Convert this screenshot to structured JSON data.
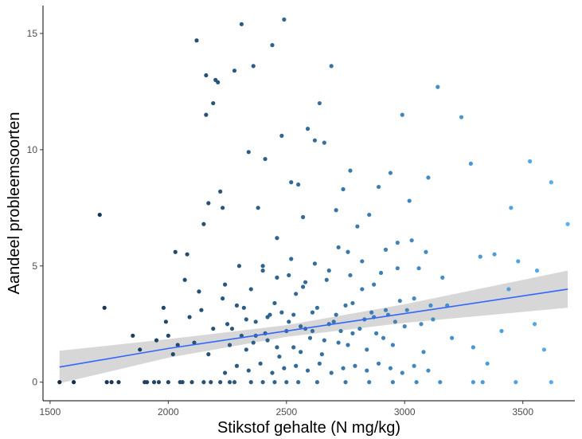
{
  "chart_data": {
    "type": "scatter",
    "title": "",
    "xlabel": "Stikstof gehalte (N mg/kg)",
    "ylabel": "Aandeel probleemsoorten",
    "xlim": [
      1470,
      3720
    ],
    "ylim": [
      -0.8,
      16.2
    ],
    "x_ticks": [
      1500,
      2000,
      2500,
      3000,
      3500
    ],
    "y_ticks": [
      0,
      5,
      10,
      15
    ],
    "grid": false,
    "legend": "none",
    "color_scale": [
      "#132b43",
      "#56b1f7"
    ],
    "trend_color": "#3366ff",
    "band_color": "#bdbdbd",
    "trend": {
      "x": [
        1540,
        2000,
        2500,
        3000,
        3690
      ],
      "y": [
        0.65,
        1.45,
        2.2,
        2.95,
        4.0
      ],
      "lower": [
        -0.05,
        1.05,
        1.95,
        2.55,
        3.2
      ],
      "upper": [
        1.35,
        1.85,
        2.45,
        3.35,
        4.8
      ]
    },
    "points": [
      [
        1540,
        0
      ],
      [
        1600,
        0
      ],
      [
        1710,
        7.2
      ],
      [
        1730,
        3.2
      ],
      [
        1740,
        0
      ],
      [
        1760,
        0
      ],
      [
        1790,
        0
      ],
      [
        1850,
        2.0
      ],
      [
        1880,
        1.4
      ],
      [
        1910,
        0
      ],
      [
        1940,
        0
      ],
      [
        1950,
        1.8
      ],
      [
        1960,
        0
      ],
      [
        1980,
        3.2
      ],
      [
        1990,
        2.6
      ],
      [
        2000,
        2.0
      ],
      [
        2000,
        0
      ],
      [
        2020,
        1.2
      ],
      [
        2030,
        5.6
      ],
      [
        2040,
        1.6
      ],
      [
        2060,
        0
      ],
      [
        2070,
        4.4
      ],
      [
        2080,
        5.5
      ],
      [
        2090,
        2.8
      ],
      [
        2100,
        0
      ],
      [
        2110,
        1.7
      ],
      [
        2120,
        14.7
      ],
      [
        2130,
        3.9
      ],
      [
        2150,
        6.8
      ],
      [
        2160,
        11.5
      ],
      [
        2160,
        13.2
      ],
      [
        2170,
        7.7
      ],
      [
        2180,
        0
      ],
      [
        2190,
        12.0
      ],
      [
        2200,
        13.0
      ],
      [
        2210,
        12.9
      ],
      [
        2220,
        8.2
      ],
      [
        2230,
        7.5
      ],
      [
        2240,
        4.2
      ],
      [
        2250,
        2.5
      ],
      [
        2260,
        0
      ],
      [
        2270,
        2.3
      ],
      [
        2280,
        13.4
      ],
      [
        2300,
        5.0
      ],
      [
        2310,
        15.4
      ],
      [
        2320,
        3.2
      ],
      [
        2330,
        1.4
      ],
      [
        2340,
        9.9
      ],
      [
        2350,
        4.0
      ],
      [
        2360,
        13.6
      ],
      [
        2370,
        2.0
      ],
      [
        2380,
        7.5
      ],
      [
        2400,
        4.8
      ],
      [
        2400,
        0
      ],
      [
        2410,
        9.6
      ],
      [
        2420,
        1.8
      ],
      [
        2430,
        2.9
      ],
      [
        2440,
        14.5
      ],
      [
        2450,
        3.4
      ],
      [
        2460,
        6.2
      ],
      [
        2470,
        1.1
      ],
      [
        2480,
        10.6
      ],
      [
        2490,
        15.6
      ],
      [
        2500,
        2.2
      ],
      [
        2510,
        4.6
      ],
      [
        2520,
        8.6
      ],
      [
        2530,
        1.5
      ],
      [
        2540,
        3.8
      ],
      [
        2550,
        8.5
      ],
      [
        2560,
        2.4
      ],
      [
        2570,
        7.1
      ],
      [
        2580,
        4.3
      ],
      [
        2590,
        10.9
      ],
      [
        2600,
        1.9
      ],
      [
        2610,
        3.0
      ],
      [
        2620,
        10.4
      ],
      [
        2630,
        0
      ],
      [
        2640,
        12.0
      ],
      [
        2650,
        1.2
      ],
      [
        2660,
        10.3
      ],
      [
        2680,
        4.8
      ],
      [
        2690,
        13.6
      ],
      [
        2700,
        2.6
      ],
      [
        2710,
        7.4
      ],
      [
        2720,
        1.7
      ],
      [
        2740,
        8.3
      ],
      [
        2750,
        3.3
      ],
      [
        2760,
        5.6
      ],
      [
        2770,
        9.1
      ],
      [
        2780,
        2.1
      ],
      [
        2800,
        6.7
      ],
      [
        2820,
        4.0
      ],
      [
        2840,
        1.4
      ],
      [
        2850,
        7.2
      ],
      [
        2870,
        2.8
      ],
      [
        2890,
        8.4
      ],
      [
        2900,
        4.7
      ],
      [
        2920,
        3.1
      ],
      [
        2940,
        9.0
      ],
      [
        2950,
        1.6
      ],
      [
        2970,
        6.0
      ],
      [
        2990,
        11.5
      ],
      [
        3000,
        2.4
      ],
      [
        3020,
        7.8
      ],
      [
        3040,
        3.6
      ],
      [
        3060,
        4.9
      ],
      [
        3080,
        1.3
      ],
      [
        3100,
        8.8
      ],
      [
        3120,
        2.7
      ],
      [
        3140,
        12.7
      ],
      [
        3160,
        4.5
      ],
      [
        3180,
        3.3
      ],
      [
        3200,
        1.9
      ],
      [
        3240,
        11.4
      ],
      [
        3280,
        9.4
      ],
      [
        3290,
        1.5
      ],
      [
        3320,
        5.4
      ],
      [
        3350,
        0.8
      ],
      [
        3380,
        5.5
      ],
      [
        3410,
        2.2
      ],
      [
        3440,
        4.0
      ],
      [
        3450,
        7.5
      ],
      [
        3480,
        5.2
      ],
      [
        3530,
        9.5
      ],
      [
        3550,
        2.5
      ],
      [
        3560,
        4.8
      ],
      [
        3590,
        1.4
      ],
      [
        3620,
        8.6
      ],
      [
        3690,
        6.8
      ],
      [
        3620,
        0
      ],
      [
        3470,
        0
      ],
      [
        3330,
        0
      ],
      [
        3290,
        0
      ],
      [
        3150,
        0
      ],
      [
        3050,
        0
      ],
      [
        2950,
        0
      ],
      [
        2850,
        0
      ],
      [
        2750,
        0
      ],
      [
        2550,
        0
      ],
      [
        2500,
        0
      ],
      [
        2450,
        0
      ],
      [
        2350,
        0
      ],
      [
        2280,
        0
      ],
      [
        2220,
        0
      ],
      [
        2150,
        0
      ],
      [
        2050,
        0
      ],
      [
        1900,
        0
      ],
      [
        2370,
        2.6
      ],
      [
        2420,
        2.8
      ],
      [
        2480,
        3.0
      ],
      [
        2530,
        2.9
      ],
      [
        2580,
        2.3
      ],
      [
        2630,
        3.2
      ],
      [
        2680,
        2.5
      ],
      [
        2730,
        2.2
      ],
      [
        2780,
        3.4
      ],
      [
        2830,
        2.7
      ],
      [
        2880,
        2.1
      ],
      [
        2930,
        2.9
      ],
      [
        2980,
        3.5
      ],
      [
        2330,
        2.7
      ],
      [
        2290,
        3.3
      ],
      [
        2260,
        1.6
      ],
      [
        2230,
        3.6
      ],
      [
        2190,
        2.3
      ],
      [
        2170,
        1.2
      ],
      [
        2140,
        3.1
      ],
      [
        2310,
        2.0
      ],
      [
        2360,
        1.7
      ],
      [
        2410,
        2.1
      ],
      [
        2460,
        1.5
      ],
      [
        2510,
        2.6
      ],
      [
        2560,
        1.3
      ],
      [
        2610,
        2.2
      ],
      [
        2660,
        1.8
      ],
      [
        2710,
        2.9
      ],
      [
        2760,
        1.6
      ],
      [
        2810,
        2.3
      ],
      [
        2860,
        3.0
      ],
      [
        2910,
        1.9
      ],
      [
        2960,
        2.6
      ],
      [
        3010,
        3.1
      ],
      [
        3070,
        2.5
      ],
      [
        3110,
        3.3
      ],
      [
        2400,
        5.0
      ],
      [
        2460,
        4.5
      ],
      [
        2520,
        5.3
      ],
      [
        2570,
        4.1
      ],
      [
        2620,
        5.1
      ],
      [
        2670,
        4.4
      ],
      [
        2720,
        5.8
      ],
      [
        2770,
        4.6
      ],
      [
        2820,
        5.2
      ],
      [
        2870,
        4.2
      ],
      [
        2920,
        5.7
      ],
      [
        2970,
        4.9
      ],
      [
        3030,
        6.1
      ],
      [
        3090,
        5.6
      ],
      [
        2240,
        0.4
      ],
      [
        2290,
        0.7
      ],
      [
        2340,
        0.5
      ],
      [
        2390,
        0.8
      ],
      [
        2440,
        0.4
      ],
      [
        2490,
        0.6
      ],
      [
        2540,
        0.7
      ],
      [
        2590,
        0.5
      ],
      [
        2640,
        0.8
      ],
      [
        2690,
        0.4
      ],
      [
        2740,
        0.6
      ],
      [
        2790,
        0.7
      ],
      [
        2840,
        0.5
      ],
      [
        2890,
        0.8
      ],
      [
        2940,
        0.6
      ],
      [
        2990,
        0.4
      ],
      [
        3040,
        0.7
      ],
      [
        3100,
        0.5
      ]
    ]
  },
  "text": {
    "xlabel": "Stikstof gehalte (N mg/kg)",
    "ylabel": "Aandeel probleemsoorten",
    "x_tick_labels": [
      "1500",
      "2000",
      "2500",
      "3000",
      "3500"
    ],
    "y_tick_labels": [
      "0",
      "5",
      "10",
      "15"
    ]
  }
}
